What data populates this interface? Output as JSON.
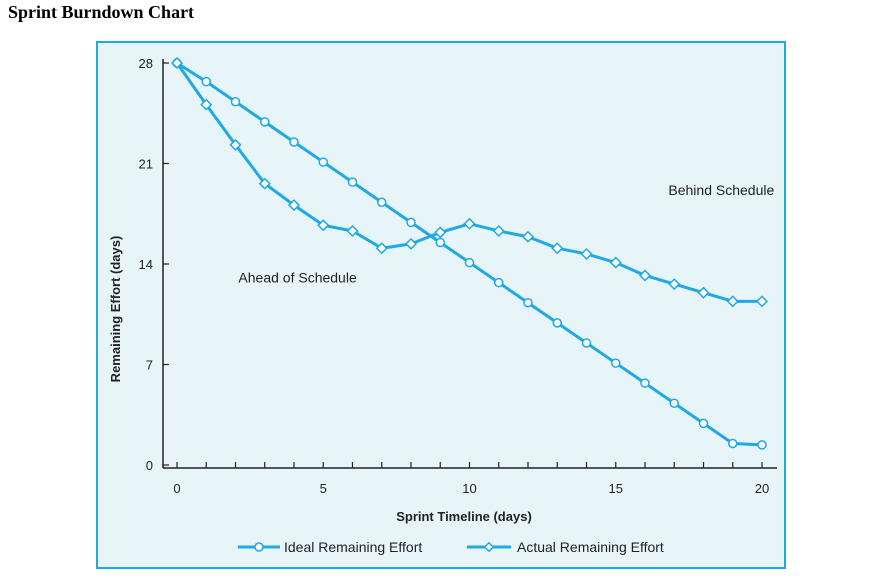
{
  "page": {
    "title": "Sprint Burndown Chart"
  },
  "chart_data": {
    "type": "line",
    "title": "",
    "xlabel": "Sprint Timeline (days)",
    "ylabel": "Remaining Effort (days)",
    "xlim": [
      0,
      20
    ],
    "ylim": [
      0,
      28
    ],
    "x_ticks": [
      0,
      5,
      10,
      15,
      20
    ],
    "y_ticks": [
      0,
      7,
      14,
      21,
      28
    ],
    "grid": false,
    "legend_placement": "bottom",
    "line_color": "#1fa9e5",
    "background_color": "#e7f5f8",
    "series": [
      {
        "name": "Ideal Remaining Effort",
        "marker": "circle",
        "x": [
          0,
          1,
          2,
          3,
          4,
          5,
          6,
          7,
          8,
          9,
          10,
          11,
          12,
          13,
          14,
          15,
          16,
          17,
          18,
          19,
          20
        ],
        "values": [
          28,
          26.7,
          25.3,
          23.9,
          22.5,
          21.1,
          19.7,
          18.3,
          16.9,
          15.5,
          14.1,
          12.7,
          11.3,
          9.9,
          8.5,
          7.1,
          5.7,
          4.3,
          2.9,
          1.5,
          1.4
        ]
      },
      {
        "name": "Actual Remaining Effort",
        "marker": "diamond",
        "x": [
          0,
          1,
          2,
          3,
          4,
          5,
          6,
          7,
          8,
          9,
          10,
          11,
          12,
          13,
          14,
          15,
          16,
          17,
          18,
          19,
          20
        ],
        "values": [
          28,
          25.1,
          22.3,
          19.6,
          18.1,
          16.7,
          16.3,
          15.1,
          15.4,
          16.2,
          16.8,
          16.3,
          15.9,
          15.1,
          14.7,
          14.1,
          13.2,
          12.6,
          12.0,
          11.4,
          11.4
        ]
      }
    ],
    "annotations": [
      {
        "text": "Behind Schedule",
        "x": 16.8,
        "y": 18.8
      },
      {
        "text": "Ahead of Schedule",
        "x": 2.1,
        "y": 12.7
      }
    ]
  }
}
